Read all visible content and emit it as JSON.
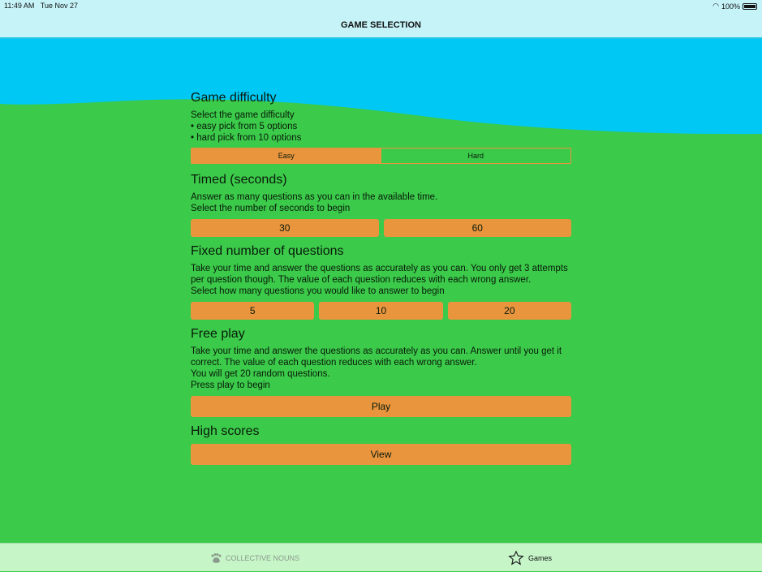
{
  "status": {
    "time": "11:49 AM",
    "date": "Tue Nov 27",
    "battery": "100%"
  },
  "nav": {
    "title": "GAME SELECTION"
  },
  "colors": {
    "sky": "#00c8f5",
    "grass": "#3bca4a",
    "button": "#e8953e",
    "bars": "#c5f3f8",
    "tabbar": "#c6f5c8"
  },
  "difficulty": {
    "title": "Game difficulty",
    "lines": [
      "Select the game difficulty",
      "• easy pick from 5 options",
      "• hard pick from 10 options"
    ],
    "options": [
      "Easy",
      "Hard"
    ],
    "selected": "Easy"
  },
  "timed": {
    "title": "Timed (seconds)",
    "lines": [
      "Answer as many questions as you can in the available time.",
      "Select the number of seconds to begin"
    ],
    "options": [
      "30",
      "60"
    ]
  },
  "fixed": {
    "title": "Fixed number of questions",
    "lines": [
      "Take your time and answer the questions as accurately as you can. You only get 3 attempts per question though. The value of each question reduces with each wrong answer.",
      "Select how many questions you would like to answer to begin"
    ],
    "options": [
      "5",
      "10",
      "20"
    ]
  },
  "free": {
    "title": "Free play",
    "lines": [
      "Take your time and answer the questions as accurately as you can. Answer until you get it correct. The value of each question reduces with each wrong answer.",
      "You will get 20 random questions.",
      "Press play to begin"
    ],
    "button": "Play"
  },
  "high": {
    "title": "High scores",
    "button": "View"
  },
  "tabs": [
    {
      "label": "COLLECTIVE NOUNS",
      "icon": "paw-icon"
    },
    {
      "label": "Games",
      "icon": "star-icon",
      "selected": true
    }
  ]
}
